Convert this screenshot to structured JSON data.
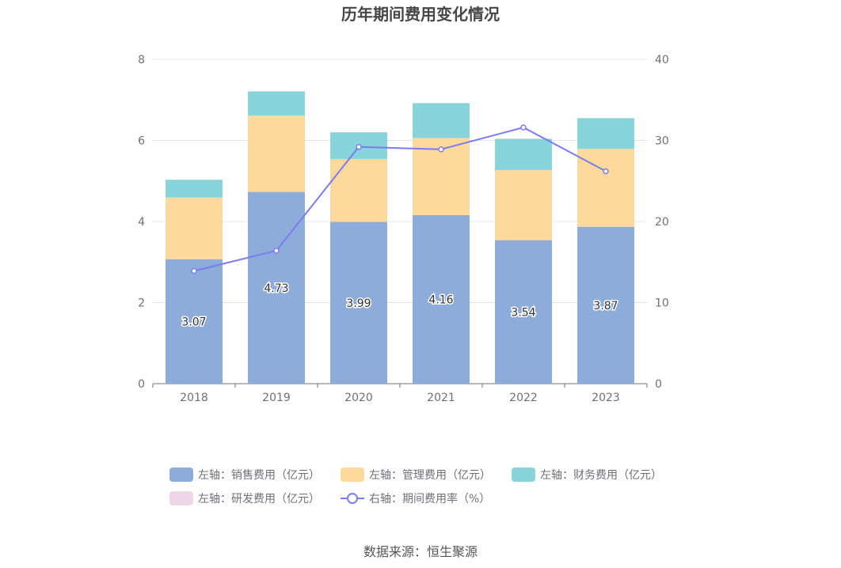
{
  "chart_data": {
    "type": "bar",
    "title": "历年期间费用变化情况",
    "categories": [
      "2018",
      "2019",
      "2020",
      "2021",
      "2022",
      "2023"
    ],
    "left_axis": {
      "min": 0,
      "max": 8,
      "ticks": [
        "0",
        "2",
        "4",
        "6",
        "8"
      ]
    },
    "right_axis": {
      "min": 0,
      "max": 40,
      "ticks": [
        "0",
        "10",
        "20",
        "30",
        "40"
      ]
    },
    "grid": true,
    "legend_position": "bottom",
    "series": [
      {
        "name": "左轴：销售费用（亿元）",
        "type": "stacked-bar",
        "axis": "left",
        "color": "#8eacd9",
        "values": [
          3.07,
          4.73,
          3.99,
          4.16,
          3.54,
          3.87
        ],
        "labels": [
          "3.07",
          "4.73",
          "3.99",
          "4.16",
          "3.54",
          "3.87"
        ]
      },
      {
        "name": "左轴：管理费用（亿元）",
        "type": "stacked-bar",
        "axis": "left",
        "color": "#fed99c",
        "values": [
          1.52,
          1.88,
          1.55,
          1.9,
          1.73,
          1.92
        ]
      },
      {
        "name": "左轴：财务费用（亿元）",
        "type": "stacked-bar",
        "axis": "left",
        "color": "#87d5da",
        "values": [
          0.44,
          0.6,
          0.66,
          0.86,
          0.77,
          0.76
        ]
      },
      {
        "name": "左轴：研发费用（亿元）",
        "type": "stacked-bar",
        "axis": "left",
        "color": "#eed5e8",
        "values": [
          0,
          0,
          0,
          0,
          0,
          0
        ]
      },
      {
        "name": "右轴：期间费用率（%）",
        "type": "line",
        "axis": "right",
        "color": "#7b7cee",
        "values": [
          13.9,
          16.4,
          29.2,
          28.9,
          31.6,
          26.2
        ]
      }
    ]
  },
  "source": "数据来源：恒生聚源"
}
